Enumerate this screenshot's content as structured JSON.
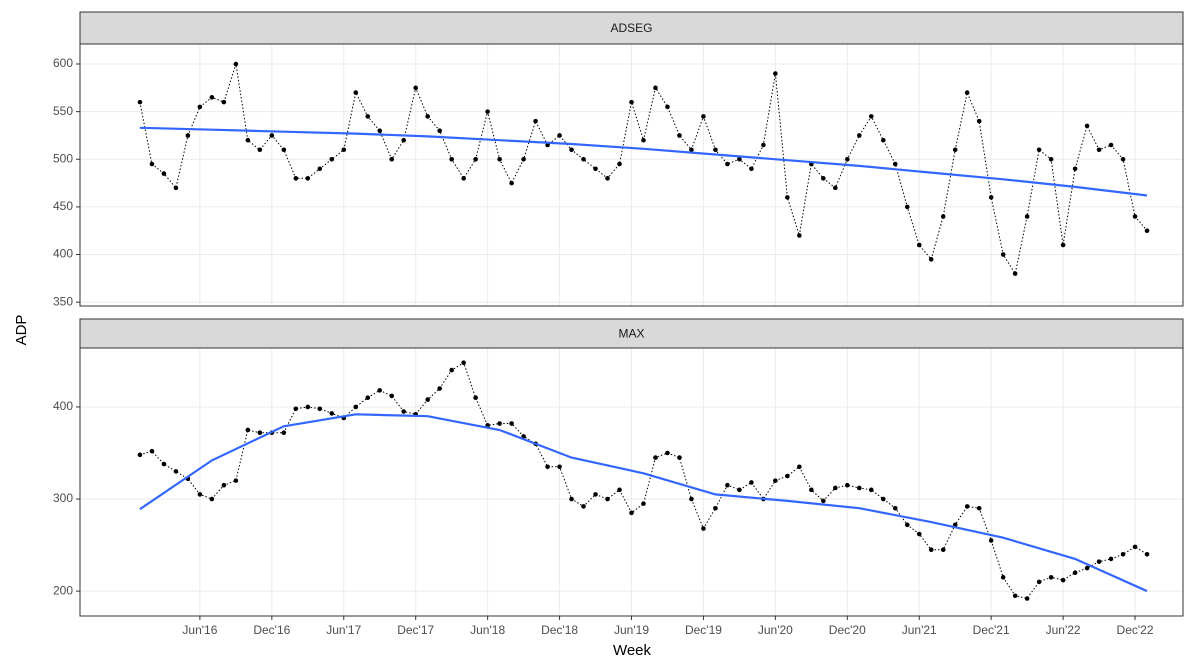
{
  "ylabel": "ADP",
  "x_axis": {
    "label": "Week",
    "lim": [
      "2015-08",
      "2023-04"
    ],
    "ticks": [
      {
        "value": "2016-06",
        "label": "Jun'16"
      },
      {
        "value": "2016-12",
        "label": "Dec'16"
      },
      {
        "value": "2017-06",
        "label": "Jun'17"
      },
      {
        "value": "2017-12",
        "label": "Dec'17"
      },
      {
        "value": "2018-06",
        "label": "Jun'18"
      },
      {
        "value": "2018-12",
        "label": "Dec'18"
      },
      {
        "value": "2019-06",
        "label": "Jun'19"
      },
      {
        "value": "2019-12",
        "label": "Dec'19"
      },
      {
        "value": "2020-06",
        "label": "Jun'20"
      },
      {
        "value": "2020-12",
        "label": "Dec'20"
      },
      {
        "value": "2021-06",
        "label": "Jun'21"
      },
      {
        "value": "2021-12",
        "label": "Dec'21"
      },
      {
        "value": "2022-06",
        "label": "Jun'22"
      },
      {
        "value": "2022-12",
        "label": "Dec'22"
      }
    ]
  },
  "chart_data": [
    {
      "type": "line",
      "title": "ADSEG",
      "grid": true,
      "x": [
        "2016-01",
        "2016-02",
        "2016-03",
        "2016-04",
        "2016-05",
        "2016-06",
        "2016-07",
        "2016-08",
        "2016-09",
        "2016-10",
        "2016-11",
        "2016-12",
        "2017-01",
        "2017-02",
        "2017-03",
        "2017-04",
        "2017-05",
        "2017-06",
        "2017-07",
        "2017-08",
        "2017-09",
        "2017-10",
        "2017-11",
        "2017-12",
        "2018-01",
        "2018-02",
        "2018-03",
        "2018-04",
        "2018-05",
        "2018-06",
        "2018-07",
        "2018-08",
        "2018-09",
        "2018-10",
        "2018-11",
        "2018-12",
        "2019-01",
        "2019-02",
        "2019-03",
        "2019-04",
        "2019-05",
        "2019-06",
        "2019-07",
        "2019-08",
        "2019-09",
        "2019-10",
        "2019-11",
        "2019-12",
        "2020-01",
        "2020-02",
        "2020-03",
        "2020-04",
        "2020-05",
        "2020-06",
        "2020-07",
        "2020-08",
        "2020-09",
        "2020-10",
        "2020-11",
        "2020-12",
        "2021-01",
        "2021-02",
        "2021-03",
        "2021-04",
        "2021-05",
        "2021-06",
        "2021-07",
        "2021-08",
        "2021-09",
        "2021-10",
        "2021-11",
        "2021-12",
        "2022-01",
        "2022-02",
        "2022-03",
        "2022-04",
        "2022-05",
        "2022-06",
        "2022-07",
        "2022-08",
        "2022-09",
        "2022-10",
        "2022-11",
        "2022-12",
        "2023-01"
      ],
      "ylim": [
        346,
        621
      ],
      "yticks": [
        350,
        400,
        450,
        500,
        550,
        600
      ],
      "series": [
        {
          "color": "#000000",
          "linestyle": "dotted",
          "markers": true,
          "values": [
            560,
            495,
            485,
            470,
            525,
            555,
            565,
            560,
            600,
            520,
            510,
            525,
            510,
            480,
            480,
            490,
            500,
            510,
            570,
            545,
            530,
            500,
            520,
            575,
            545,
            530,
            500,
            480,
            500,
            550,
            500,
            475,
            500,
            540,
            515,
            525,
            510,
            500,
            490,
            480,
            495,
            560,
            520,
            575,
            555,
            525,
            510,
            545,
            510,
            495,
            500,
            490,
            515,
            590,
            460,
            420,
            495,
            480,
            470,
            500,
            525,
            545,
            520,
            495,
            450,
            410,
            395,
            440,
            510,
            570,
            540,
            460,
            400,
            380,
            440,
            510,
            500,
            410,
            490,
            535,
            510,
            515,
            500,
            440,
            425
          ]
        },
        {
          "color": "#3366ff",
          "linestyle": "solid",
          "markers": false,
          "x": [
            "2016-01",
            "2016-07",
            "2017-01",
            "2017-07",
            "2018-01",
            "2018-07",
            "2019-01",
            "2019-07",
            "2020-01",
            "2020-07",
            "2021-01",
            "2021-07",
            "2022-01",
            "2022-07",
            "2023-01"
          ],
          "values": [
            533,
            531,
            529,
            527,
            524,
            520,
            516,
            511,
            505,
            499,
            493,
            486,
            479,
            471,
            462
          ]
        }
      ]
    },
    {
      "type": "line",
      "title": "MAX",
      "grid": true,
      "x": [
        "2016-01",
        "2016-02",
        "2016-03",
        "2016-04",
        "2016-05",
        "2016-06",
        "2016-07",
        "2016-08",
        "2016-09",
        "2016-10",
        "2016-11",
        "2016-12",
        "2017-01",
        "2017-02",
        "2017-03",
        "2017-04",
        "2017-05",
        "2017-06",
        "2017-07",
        "2017-08",
        "2017-09",
        "2017-10",
        "2017-11",
        "2017-12",
        "2018-01",
        "2018-02",
        "2018-03",
        "2018-04",
        "2018-05",
        "2018-06",
        "2018-07",
        "2018-08",
        "2018-09",
        "2018-10",
        "2018-11",
        "2018-12",
        "2019-01",
        "2019-02",
        "2019-03",
        "2019-04",
        "2019-05",
        "2019-06",
        "2019-07",
        "2019-08",
        "2019-09",
        "2019-10",
        "2019-11",
        "2019-12",
        "2020-01",
        "2020-02",
        "2020-03",
        "2020-04",
        "2020-05",
        "2020-06",
        "2020-07",
        "2020-08",
        "2020-09",
        "2020-10",
        "2020-11",
        "2020-12",
        "2021-01",
        "2021-02",
        "2021-03",
        "2021-04",
        "2021-05",
        "2021-06",
        "2021-07",
        "2021-08",
        "2021-09",
        "2021-10",
        "2021-11",
        "2021-12",
        "2022-01",
        "2022-02",
        "2022-03",
        "2022-04",
        "2022-05",
        "2022-06",
        "2022-07",
        "2022-08",
        "2022-09",
        "2022-10",
        "2022-11",
        "2022-12",
        "2023-01"
      ],
      "ylim": [
        173,
        464
      ],
      "yticks": [
        200,
        300,
        400
      ],
      "series": [
        {
          "color": "#000000",
          "linestyle": "dotted",
          "markers": true,
          "values": [
            348,
            352,
            338,
            330,
            322,
            305,
            300,
            315,
            320,
            375,
            372,
            372,
            372,
            398,
            400,
            398,
            393,
            388,
            400,
            410,
            418,
            412,
            395,
            392,
            408,
            420,
            440,
            448,
            410,
            380,
            382,
            382,
            368,
            360,
            335,
            335,
            300,
            292,
            305,
            300,
            310,
            285,
            295,
            345,
            350,
            345,
            300,
            268,
            290,
            315,
            310,
            318,
            300,
            320,
            325,
            335,
            310,
            298,
            312,
            315,
            312,
            310,
            300,
            290,
            272,
            262,
            245,
            245,
            272,
            292,
            290,
            255,
            215,
            195,
            192,
            210,
            215,
            212,
            220,
            225,
            232,
            235,
            240,
            248,
            240
          ]
        },
        {
          "color": "#3366ff",
          "linestyle": "solid",
          "markers": false,
          "x": [
            "2016-01",
            "2016-07",
            "2017-01",
            "2017-07",
            "2018-01",
            "2018-07",
            "2019-01",
            "2019-07",
            "2020-01",
            "2020-07",
            "2021-01",
            "2021-07",
            "2022-01",
            "2022-07",
            "2023-01"
          ],
          "values": [
            289,
            342,
            379,
            392,
            390,
            375,
            345,
            328,
            305,
            298,
            290,
            275,
            258,
            235,
            200
          ]
        }
      ]
    }
  ]
}
